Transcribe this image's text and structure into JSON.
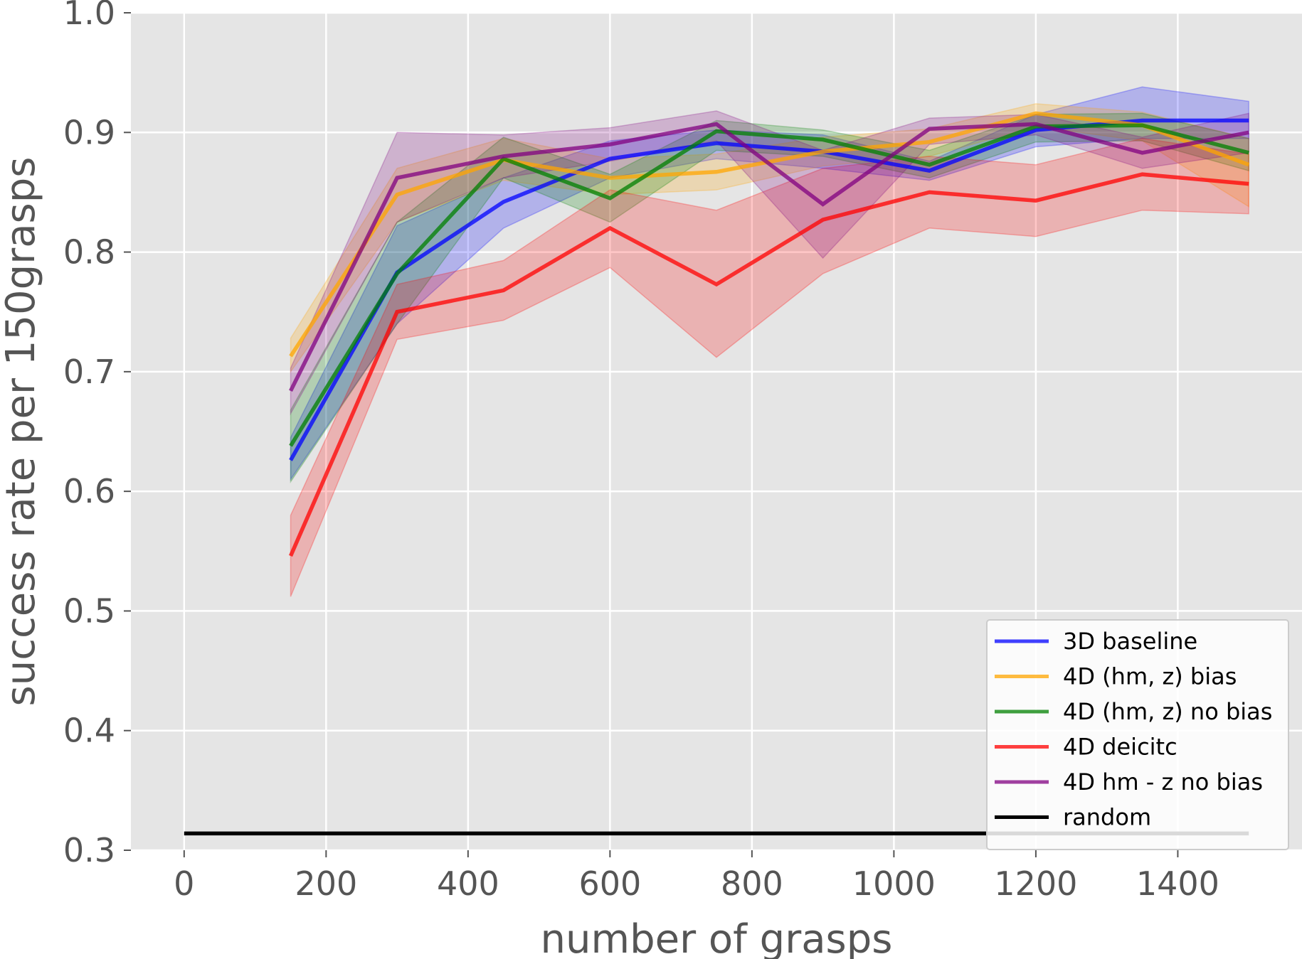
{
  "chart_data": {
    "type": "line",
    "title": "",
    "xlabel": "number of grasps",
    "ylabel": "success rate per 150grasps",
    "xlim": [
      -75,
      1575
    ],
    "ylim": [
      0.3,
      1.0
    ],
    "xticks": [
      0,
      200,
      400,
      600,
      800,
      1000,
      1200,
      1400
    ],
    "xtick_labels": [
      "0",
      "200",
      "400",
      "600",
      "800",
      "1000",
      "1200",
      "1400"
    ],
    "yticks": [
      0.3,
      0.4,
      0.5,
      0.6,
      0.7,
      0.8,
      0.9,
      1.0
    ],
    "ytick_labels": [
      "0.3",
      "0.4",
      "0.5",
      "0.6",
      "0.7",
      "0.8",
      "0.9",
      "1.0"
    ],
    "grid": true,
    "legend_position": "bottom-right",
    "background": "#e5e5e5",
    "x": [
      150,
      300,
      450,
      600,
      750,
      900,
      1050,
      1200,
      1350,
      1500
    ],
    "series": [
      {
        "name": "3D baseline",
        "color": "#0000ff",
        "values": [
          0.626,
          0.783,
          0.842,
          0.878,
          0.891,
          0.884,
          0.868,
          0.902,
          0.91,
          0.91
        ],
        "lower": [
          0.61,
          0.74,
          0.82,
          0.862,
          0.878,
          0.87,
          0.86,
          0.888,
          0.895,
          0.895
        ],
        "upper": [
          0.645,
          0.822,
          0.862,
          0.893,
          0.902,
          0.898,
          0.876,
          0.915,
          0.938,
          0.926
        ]
      },
      {
        "name": "4D (hm, z) bias",
        "color": "#ffa500",
        "values": [
          0.713,
          0.848,
          0.877,
          0.862,
          0.867,
          0.884,
          0.892,
          0.916,
          0.906,
          0.873
        ],
        "lower": [
          0.7,
          0.825,
          0.86,
          0.848,
          0.852,
          0.872,
          0.88,
          0.905,
          0.893,
          0.838
        ],
        "upper": [
          0.728,
          0.87,
          0.895,
          0.878,
          0.882,
          0.896,
          0.903,
          0.924,
          0.917,
          0.895
        ]
      },
      {
        "name": "4D (hm, z) no bias",
        "color": "#008000",
        "values": [
          0.638,
          0.782,
          0.878,
          0.845,
          0.901,
          0.894,
          0.873,
          0.905,
          0.906,
          0.883
        ],
        "lower": [
          0.608,
          0.74,
          0.862,
          0.825,
          0.885,
          0.88,
          0.862,
          0.892,
          0.893,
          0.868
        ],
        "upper": [
          0.668,
          0.825,
          0.896,
          0.865,
          0.91,
          0.902,
          0.885,
          0.915,
          0.916,
          0.895
        ]
      },
      {
        "name": "4D deicitc",
        "color": "#ff0000",
        "values": [
          0.546,
          0.75,
          0.768,
          0.82,
          0.773,
          0.827,
          0.85,
          0.843,
          0.865,
          0.857
        ],
        "lower": [
          0.512,
          0.727,
          0.743,
          0.787,
          0.712,
          0.782,
          0.82,
          0.813,
          0.835,
          0.832
        ],
        "upper": [
          0.58,
          0.773,
          0.793,
          0.852,
          0.835,
          0.87,
          0.88,
          0.873,
          0.895,
          0.882
        ]
      },
      {
        "name": "4D hm - z no bias",
        "color": "#800080",
        "values": [
          0.684,
          0.862,
          0.88,
          0.89,
          0.907,
          0.84,
          0.903,
          0.907,
          0.883,
          0.9
        ],
        "lower": [
          0.665,
          0.825,
          0.862,
          0.876,
          0.893,
          0.795,
          0.89,
          0.898,
          0.87,
          0.883
        ],
        "upper": [
          0.703,
          0.9,
          0.898,
          0.904,
          0.918,
          0.885,
          0.912,
          0.915,
          0.896,
          0.916
        ]
      },
      {
        "name": "random",
        "color": "#000000",
        "x": [
          0,
          1500
        ],
        "values": [
          0.314,
          0.314
        ]
      }
    ]
  }
}
